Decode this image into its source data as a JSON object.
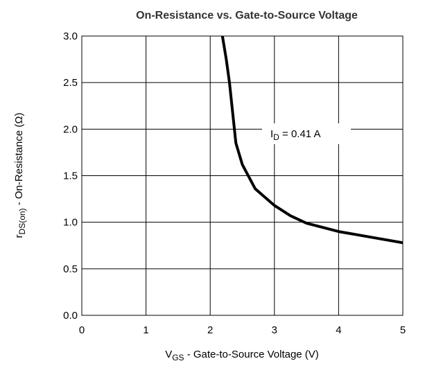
{
  "chart_data": {
    "type": "line",
    "title": "On-Resistance vs. Gate-to-Source Voltage",
    "xlabel": {
      "main": "V",
      "sub": "GS",
      "rest": " - Gate-to-Source Voltage (V)"
    },
    "ylabel": {
      "main": "r",
      "sub": "DS(on)",
      "rest": "  -  On-Resistance (Ω)"
    },
    "annotation": {
      "main": "I",
      "sub": "D",
      "rest": " = 0.41 A"
    },
    "x": [
      2.19,
      2.25,
      2.3,
      2.4,
      2.5,
      2.7,
      3.0,
      3.25,
      3.5,
      4.0,
      4.5,
      5.0
    ],
    "values": [
      3.0,
      2.75,
      2.5,
      1.85,
      1.62,
      1.36,
      1.18,
      1.07,
      0.99,
      0.9,
      0.84,
      0.78
    ],
    "color": "#000000",
    "xlim": [
      0,
      5
    ],
    "ylim": [
      0,
      3
    ],
    "xticks": [
      0,
      1,
      2,
      3,
      4,
      5
    ],
    "yticks": [
      {
        "value": 0,
        "label": "0.0"
      },
      0.5,
      {
        "value": 1,
        "label": "1.0"
      },
      1.5,
      {
        "value": 2,
        "label": "2.0"
      },
      2.5,
      {
        "value": 3,
        "label": "3.0"
      }
    ],
    "grid": true
  }
}
